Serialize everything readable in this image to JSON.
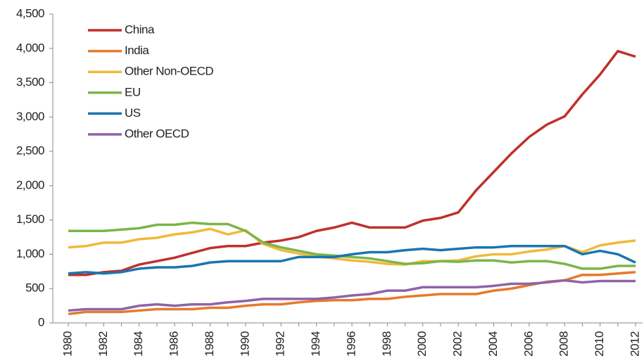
{
  "chart_data": {
    "type": "line",
    "categories": [
      "1980",
      null,
      "1982",
      null,
      "1984",
      null,
      "1986",
      null,
      "1988",
      null,
      "1990",
      null,
      "1992",
      null,
      "1994",
      null,
      "1996",
      null,
      "1998",
      null,
      "2000",
      null,
      "2002",
      null,
      "2004",
      null,
      "2006",
      null,
      "2008",
      null,
      "2010",
      null,
      "2012"
    ],
    "ylim": [
      0,
      4500
    ],
    "yticks": [
      0,
      500,
      {
        "value": 1000,
        "label": "1,000"
      },
      {
        "value": 1500,
        "label": "1,500"
      },
      {
        "value": 2000,
        "label": "2,000"
      },
      {
        "value": 2500,
        "label": "2,500"
      },
      {
        "value": 3000,
        "label": "3,000"
      },
      {
        "value": 3500,
        "label": "3,500"
      },
      {
        "value": 4000,
        "label": "4,000"
      },
      {
        "value": 4500,
        "label": "4,500"
      }
    ],
    "grid": false,
    "legend": "top-left",
    "series": [
      {
        "name": "China",
        "color": "#c0302b",
        "values": [
          700,
          700,
          740,
          760,
          850,
          900,
          950,
          1020,
          1090,
          1120,
          1120,
          1170,
          1200,
          1250,
          1340,
          1390,
          1460,
          1390,
          1390,
          1390,
          1490,
          1530,
          1610,
          1930,
          2200,
          2470,
          2710,
          2890,
          3010,
          3330,
          3620,
          3960,
          3880
        ]
      },
      {
        "name": "India",
        "color": "#e8792a",
        "values": [
          130,
          160,
          160,
          160,
          180,
          200,
          200,
          200,
          220,
          220,
          250,
          270,
          270,
          300,
          320,
          330,
          330,
          350,
          350,
          380,
          400,
          420,
          420,
          420,
          470,
          500,
          550,
          600,
          620,
          700,
          700,
          720,
          740
        ]
      },
      {
        "name": "Other Non-OECD",
        "color": "#f0b93a",
        "values": [
          1100,
          1120,
          1170,
          1170,
          1220,
          1240,
          1290,
          1320,
          1370,
          1290,
          1350,
          1150,
          1060,
          1010,
          970,
          940,
          910,
          890,
          860,
          850,
          900,
          900,
          910,
          970,
          1000,
          1000,
          1040,
          1070,
          1120,
          1030,
          1130,
          1170,
          1200
        ]
      },
      {
        "name": "EU",
        "color": "#7ab648",
        "values": [
          1340,
          1340,
          1340,
          1360,
          1380,
          1430,
          1430,
          1460,
          1440,
          1440,
          1340,
          1170,
          1100,
          1050,
          1000,
          980,
          960,
          940,
          900,
          860,
          870,
          900,
          890,
          910,
          910,
          880,
          900,
          900,
          860,
          790,
          790,
          830,
          830
        ]
      },
      {
        "name": "US",
        "color": "#1a75b0",
        "values": [
          720,
          740,
          720,
          740,
          790,
          810,
          810,
          830,
          880,
          900,
          900,
          900,
          900,
          960,
          960,
          960,
          1000,
          1030,
          1030,
          1060,
          1080,
          1060,
          1080,
          1100,
          1100,
          1120,
          1120,
          1120,
          1120,
          1000,
          1050,
          1000,
          880
        ]
      },
      {
        "name": "Other OECD",
        "color": "#8e63a8",
        "values": [
          180,
          200,
          200,
          200,
          250,
          270,
          250,
          270,
          270,
          300,
          320,
          350,
          350,
          350,
          350,
          370,
          400,
          420,
          470,
          470,
          520,
          520,
          520,
          520,
          540,
          570,
          570,
          590,
          620,
          590,
          610,
          610,
          610
        ]
      }
    ]
  }
}
